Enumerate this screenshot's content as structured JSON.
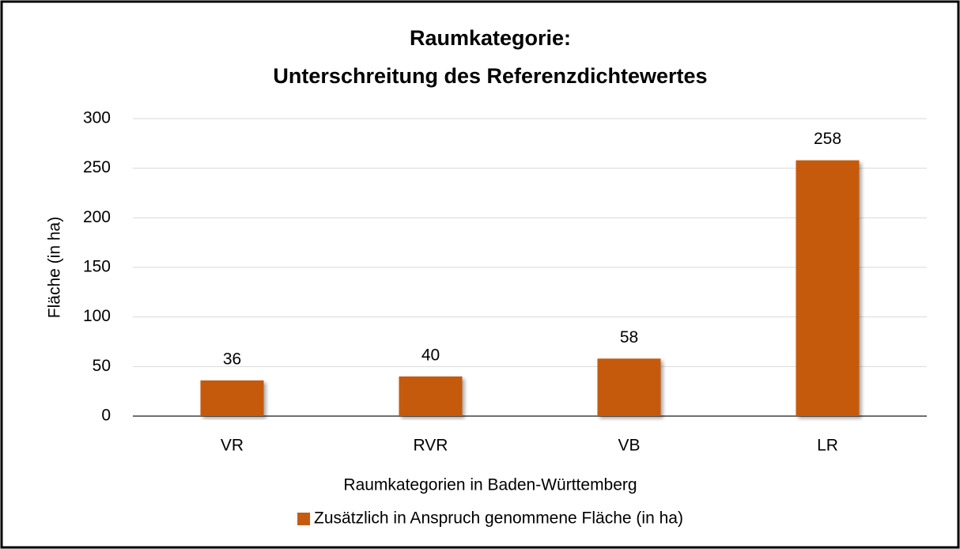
{
  "chart_data": {
    "type": "bar",
    "title": [
      "Raumkategorie:",
      "Unterschreitung des Referenzdichtewertes"
    ],
    "categories": [
      "VR",
      "RVR",
      "VB",
      "LR"
    ],
    "series": [
      {
        "name": "Zusätzlich in Anspruch genommene Fläche (in ha)",
        "color": "#c55a11",
        "values": [
          36,
          40,
          58,
          258
        ]
      }
    ],
    "xlabel": "Raumkategorien in Baden-Württemberg",
    "ylabel": "Fläche (in ha)",
    "ylim": [
      0,
      300
    ],
    "yticks": [
      0,
      50,
      100,
      150,
      200,
      250,
      300
    ],
    "grid": true,
    "legend": "bottom",
    "data_labels": true
  }
}
